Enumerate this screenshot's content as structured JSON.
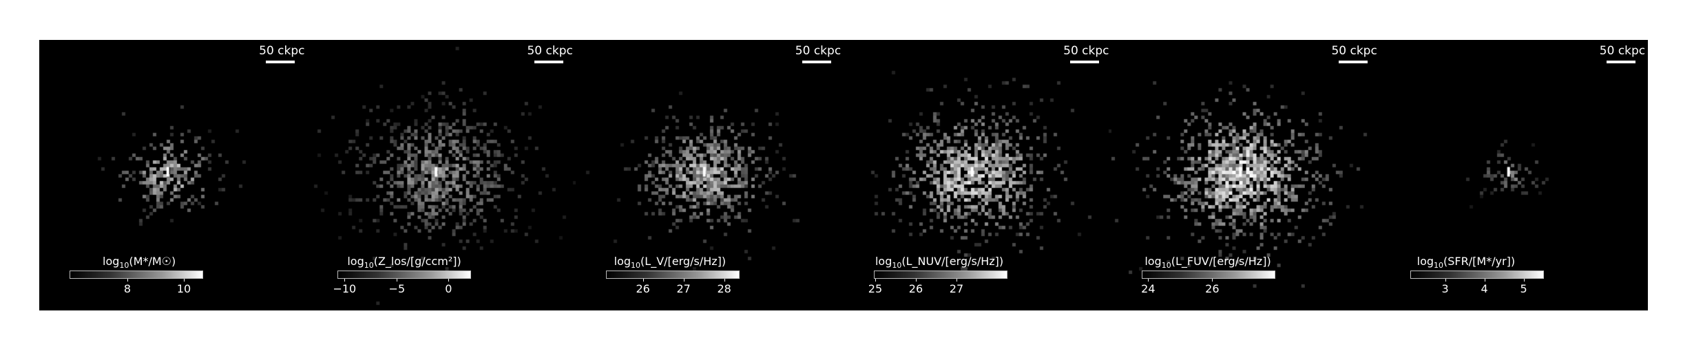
{
  "scalebar_label": "50 ckpc",
  "panels": [
    {
      "id": "stellar-mass",
      "colorbar": {
        "prefix": "log",
        "sub": "10",
        "rest": "(M*/M☉)",
        "ticks": [
          "8",
          "10"
        ]
      }
    },
    {
      "id": "metallicity",
      "colorbar": {
        "prefix": "log",
        "sub": "10",
        "rest": "(Z_los/[g/ccm²])",
        "ticks": [
          "−10",
          "−5",
          "0"
        ]
      }
    },
    {
      "id": "lum-v",
      "colorbar": {
        "prefix": "log",
        "sub": "10",
        "rest": "(L_V/[erg/s/Hz])",
        "ticks": [
          "26",
          "27",
          "28"
        ]
      }
    },
    {
      "id": "lum-nuv",
      "colorbar": {
        "prefix": "log",
        "sub": "10",
        "rest": "(L_NUV/[erg/s/Hz])",
        "ticks": [
          "25",
          "26",
          "27"
        ]
      }
    },
    {
      "id": "lum-fuv",
      "colorbar": {
        "prefix": "log",
        "sub": "10",
        "rest": "(L_FUV/[erg/s/Hz])",
        "ticks": [
          "24",
          "26"
        ]
      }
    },
    {
      "id": "sfr",
      "colorbar": {
        "prefix": "log",
        "sub": "10",
        "rest": "(SFR/[M*/yr])",
        "ticks": [
          "3",
          "4",
          "5"
        ]
      }
    }
  ]
}
